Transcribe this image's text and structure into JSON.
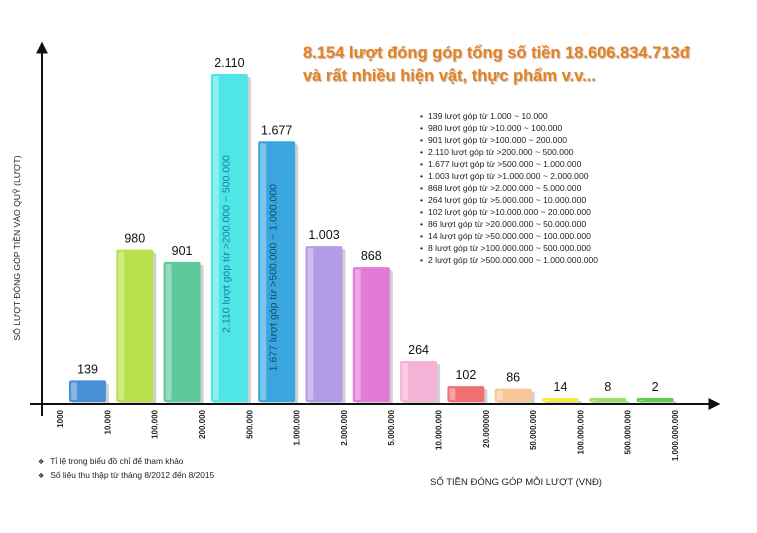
{
  "headline": {
    "line1": "8.154 lượt đóng góp tổng số tiền 18.606.834.713đ",
    "line2": "và rất nhiều hiện vật, thực phẩm v.v..."
  },
  "legend_items": [
    "139 lượt góp từ 1.000 ~ 10.000",
    "980 lượt góp từ >10.000 ~ 100.000",
    "901 lượt góp từ >100.000 ~ 200.000",
    "2.110 lượt góp từ >200.000 ~ 500.000",
    "1.677 lượt góp từ >500.000 ~ 1.000.000",
    "1.003 lượt góp từ >1.000.000 ~ 2.000.000",
    "868 lượt góp từ >2.000.000 ~ 5.000.000",
    "264 lượt góp từ >5.000.000 ~ 10.000.000",
    "102 lượt góp từ >10.000.000 ~ 20.000.000",
    "86 lượt góp từ >20.000.000 ~ 50.000.000",
    "14 lượt góp từ >50.000.000 ~ 100.000.000",
    "8 lượt góp từ >100.000.000 ~ 500.000.000",
    "2 lượt góp từ >500.000.000 ~ 1.000.000.000"
  ],
  "notes": [
    "Tỉ lệ trong biểu đồ chỉ để tham khảo",
    "Số liệu thu thập từ tháng 8/2012 đến 8/2015"
  ],
  "chart_data": {
    "type": "bar",
    "title": "",
    "xlabel": "SỐ TIỀN ĐÓNG GÓP MỖI LƯỢT (VNĐ)",
    "ylabel": "SỐ LƯỢT ĐÓNG GÓP TIỀN VÀO QUỸ (LƯỢT)",
    "tick_labels": [
      "1000",
      "10.000",
      "100.000",
      "200.000",
      "500.000",
      "1.000.000",
      "2.000.000",
      "5.000.000",
      "10.000.000",
      "20.000000",
      "50.000.000",
      "100.000.000",
      "500.000.000",
      "1.000.000.000"
    ],
    "values": [
      139,
      980,
      901,
      2110,
      1677,
      1003,
      868,
      264,
      102,
      86,
      14,
      8,
      2
    ],
    "value_labels": [
      "139",
      "980",
      "901",
      "2.110",
      "1.677",
      "1.003",
      "868",
      "264",
      "102",
      "86",
      "14",
      "8",
      "2"
    ],
    "bar_annotations": [
      "",
      "",
      "",
      "2.110 lượt góp từ >200.000 ~ 500.000",
      "1.677 lượt góp từ >500.000 ~ 1.000.000",
      "",
      "",
      "",
      "",
      "",
      "",
      "",
      ""
    ],
    "colors": [
      "#4a90d9",
      "#b8e04a",
      "#5fc89a",
      "#4fe6e6",
      "#3aa6e0",
      "#b39be8",
      "#e27ad8",
      "#f4b3d6",
      "#f07070",
      "#f7c79a",
      "#f4e94a",
      "#9be35c",
      "#56cf4e"
    ],
    "ylim": [
      0,
      2200
    ],
    "grid": false,
    "legend": "top-right"
  }
}
